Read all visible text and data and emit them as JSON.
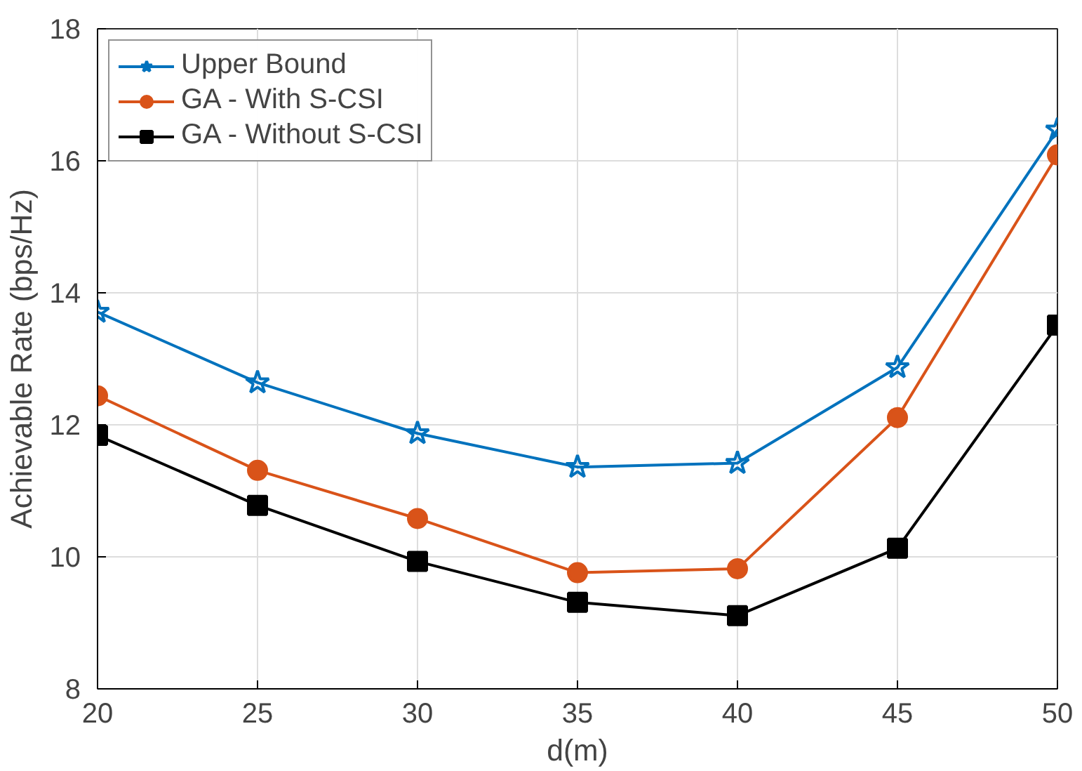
{
  "chart_data": {
    "type": "line",
    "xlabel": "d(m)",
    "ylabel": "Achievable Rate (bps/Hz)",
    "x": [
      20,
      25,
      30,
      35,
      40,
      45,
      50
    ],
    "series": [
      {
        "name": "Upper Bound",
        "color": "#0072bd",
        "marker": "star",
        "values": [
          13.71,
          12.64,
          11.87,
          11.36,
          11.42,
          12.87,
          16.47
        ]
      },
      {
        "name": "GA - With S-CSI",
        "color": "#d95319",
        "marker": "circle",
        "values": [
          12.44,
          11.31,
          10.58,
          9.76,
          9.82,
          12.11,
          16.09
        ]
      },
      {
        "name": "GA - Without S-CSI",
        "color": "#000000",
        "marker": "square",
        "values": [
          11.84,
          10.78,
          9.93,
          9.31,
          9.11,
          10.13,
          13.51
        ]
      }
    ],
    "xlim": [
      20,
      50
    ],
    "ylim": [
      8,
      18
    ],
    "xticks": [
      20,
      25,
      30,
      35,
      40,
      45,
      50
    ],
    "yticks": [
      8,
      10,
      12,
      14,
      16,
      18
    ],
    "grid": true,
    "legend": "top left",
    "line_style": "solid"
  }
}
